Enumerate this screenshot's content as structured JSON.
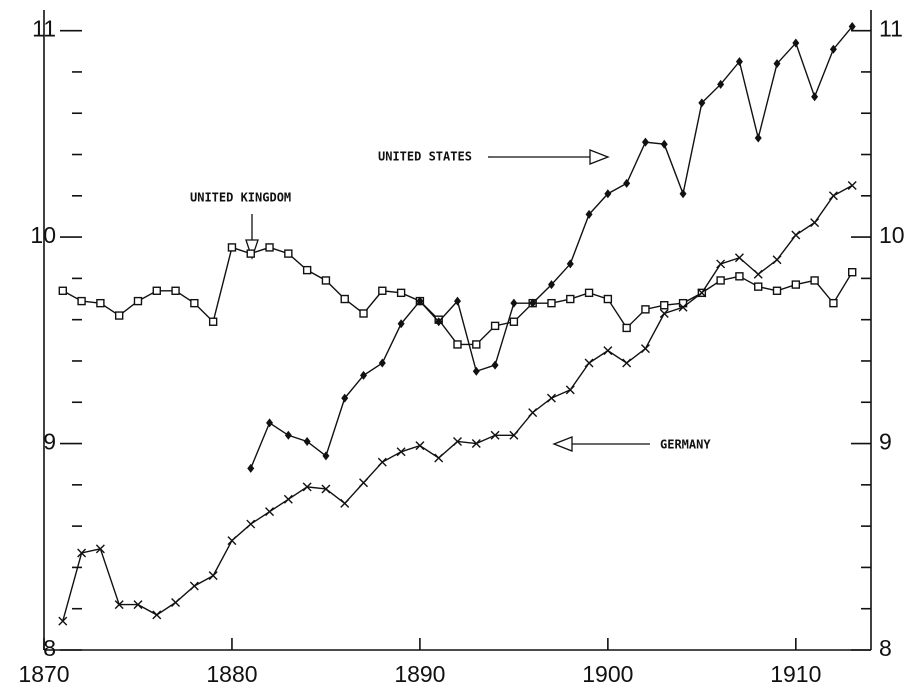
{
  "chart_data": {
    "type": "line",
    "xlim": [
      1870,
      1914
    ],
    "xticks": [
      1870,
      1880,
      1890,
      1900,
      1910
    ],
    "ylim": [
      8,
      11.1
    ],
    "yticks": [
      8,
      9,
      10,
      11
    ],
    "yticks_minor": [
      8.2,
      8.4,
      8.6,
      8.8,
      9.2,
      9.4,
      9.6,
      9.8,
      10.2,
      10.4,
      10.6,
      10.8
    ],
    "annotations": [
      "UNITED STATES",
      "UNITED KINGDOM",
      "GERMANY"
    ],
    "series": [
      {
        "name": "UNITED KINGDOM",
        "marker": "square",
        "color": "#111",
        "x": [
          1871,
          1872,
          1873,
          1874,
          1875,
          1876,
          1877,
          1878,
          1879,
          1880,
          1881,
          1882,
          1883,
          1884,
          1885,
          1886,
          1887,
          1888,
          1889,
          1890,
          1891,
          1892,
          1893,
          1894,
          1895,
          1896,
          1897,
          1898,
          1899,
          1900,
          1901,
          1902,
          1903,
          1904,
          1905,
          1906,
          1907,
          1908,
          1909,
          1910,
          1911,
          1912,
          1913
        ],
        "values": [
          9.74,
          9.69,
          9.68,
          9.62,
          9.69,
          9.74,
          9.74,
          9.68,
          9.59,
          9.95,
          9.92,
          9.95,
          9.92,
          9.84,
          9.79,
          9.7,
          9.63,
          9.74,
          9.73,
          9.69,
          9.6,
          9.48,
          9.48,
          9.57,
          9.59,
          9.68,
          9.68,
          9.7,
          9.73,
          9.7,
          9.56,
          9.65,
          9.67,
          9.68,
          9.73,
          9.79,
          9.81,
          9.76,
          9.74,
          9.77,
          9.79,
          9.68,
          9.83
        ]
      },
      {
        "name": "UNITED STATES",
        "marker": "diamond",
        "color": "#111",
        "x": [
          1881,
          1882,
          1883,
          1884,
          1885,
          1886,
          1887,
          1888,
          1889,
          1890,
          1891,
          1892,
          1893,
          1894,
          1895,
          1896,
          1897,
          1898,
          1899,
          1900,
          1901,
          1902,
          1903,
          1904,
          1905,
          1906,
          1907,
          1908,
          1909,
          1910,
          1911,
          1912,
          1913
        ],
        "values": [
          8.88,
          9.1,
          9.04,
          9.01,
          8.94,
          9.22,
          9.33,
          9.39,
          9.58,
          9.69,
          9.59,
          9.69,
          9.35,
          9.38,
          9.68,
          9.68,
          9.77,
          9.87,
          10.11,
          10.21,
          10.26,
          10.46,
          10.45,
          10.21,
          10.65,
          10.74,
          10.85,
          10.48,
          10.84,
          10.94,
          10.68,
          10.91,
          11.02
        ]
      },
      {
        "name": "GERMANY",
        "marker": "cross",
        "color": "#111",
        "x": [
          1871,
          1872,
          1873,
          1874,
          1875,
          1876,
          1877,
          1878,
          1879,
          1880,
          1881,
          1882,
          1883,
          1884,
          1885,
          1886,
          1887,
          1888,
          1889,
          1890,
          1891,
          1892,
          1893,
          1894,
          1895,
          1896,
          1897,
          1898,
          1899,
          1900,
          1901,
          1902,
          1903,
          1904,
          1905,
          1906,
          1907,
          1908,
          1909,
          1910,
          1911,
          1912,
          1913
        ],
        "values": [
          8.14,
          8.47,
          8.49,
          8.22,
          8.22,
          8.17,
          8.23,
          8.31,
          8.36,
          8.53,
          8.61,
          8.67,
          8.73,
          8.79,
          8.78,
          8.71,
          8.81,
          8.91,
          8.96,
          8.99,
          8.93,
          9.01,
          9.0,
          9.04,
          9.04,
          9.15,
          9.22,
          9.26,
          9.39,
          9.45,
          9.39,
          9.46,
          9.63,
          9.66,
          9.73,
          9.87,
          9.9,
          9.82,
          9.89,
          10.01,
          10.07,
          10.2,
          10.25
        ]
      }
    ]
  }
}
